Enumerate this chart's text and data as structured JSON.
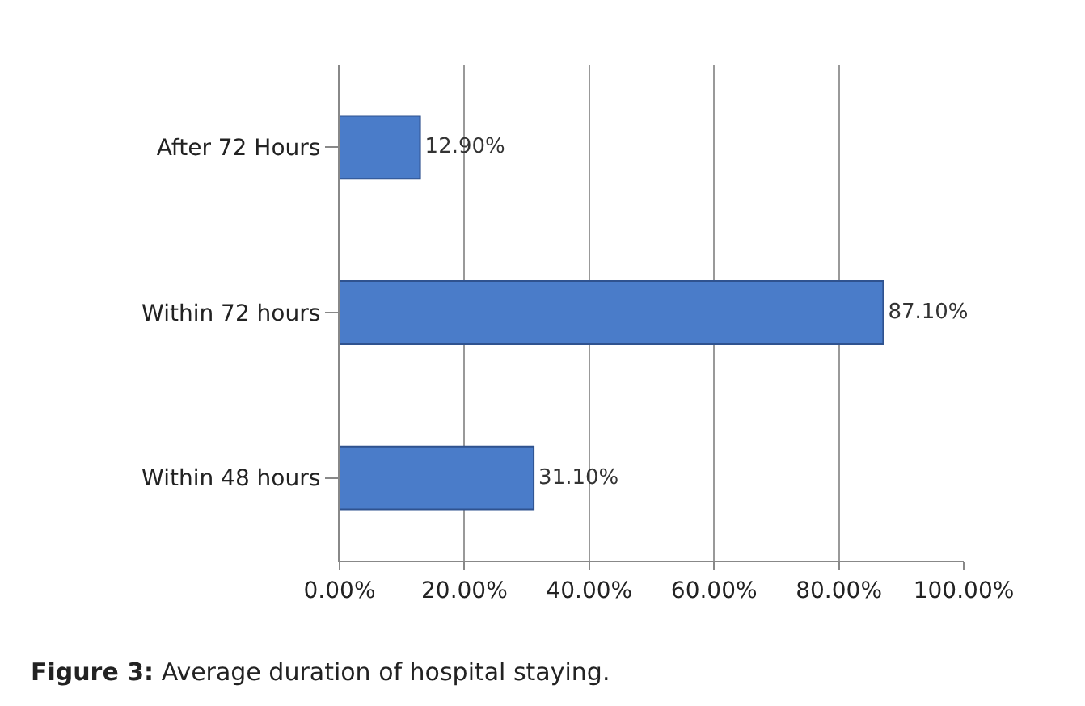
{
  "chart_data": {
    "type": "bar",
    "orientation": "horizontal",
    "categories": [
      "After 72 Hours",
      "Within 72 hours",
      "Within 48 hours"
    ],
    "values": [
      12.9,
      87.1,
      31.1
    ],
    "value_labels": [
      "12.90%",
      "87.10%",
      "31.10%"
    ],
    "color": "#4a7cc9",
    "xlim": [
      0,
      100
    ],
    "xticks": [
      {
        "value": 0,
        "label": "0.00%"
      },
      {
        "value": 20,
        "label": "20.00%"
      },
      {
        "value": 40,
        "label": "40.00%"
      },
      {
        "value": 60,
        "label": "60.00%"
      },
      {
        "value": 80,
        "label": "80.00%"
      },
      {
        "value": 100,
        "label": "100.00%"
      }
    ],
    "grid": "x",
    "annotations": [
      "Figure 3: Average duration of hospital staying."
    ]
  }
}
